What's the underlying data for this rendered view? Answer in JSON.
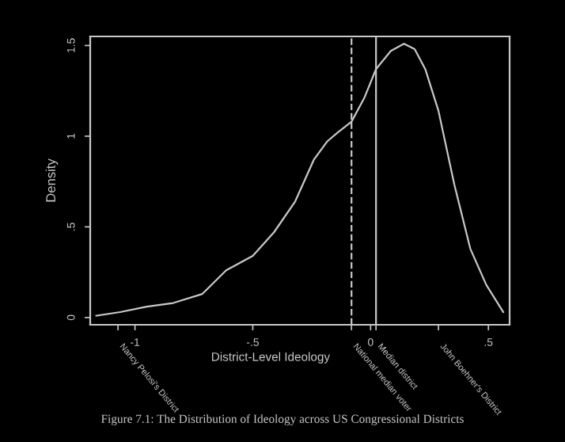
{
  "chart_data": {
    "type": "line",
    "xlabel": "District-Level Ideology",
    "ylabel": "Density",
    "annotations": [
      "Figure 7.1: The Distribution of Ideology across US Congressional Districts",
      "Nancy Pelosi's District",
      {
        "text": "National median voter",
        "x": -0.081,
        "y": -0.04
      },
      {
        "text": "Median district",
        "x": 0.023,
        "y": -0.04
      },
      "John Boehner's District"
    ],
    "x": [
      -1.164,
      -1.063,
      -0.95,
      -0.838,
      -0.714,
      -0.613,
      -0.5,
      -0.41,
      -0.32,
      -0.241,
      -0.185,
      -0.14,
      -0.081,
      -0.027,
      0.023,
      0.086,
      0.142,
      0.187,
      0.232,
      0.288,
      0.356,
      0.423,
      0.491,
      0.563
    ],
    "series": [
      {
        "color": "#c8c8c8",
        "values": [
          0.01,
          0.03,
          0.06,
          0.08,
          0.13,
          0.26,
          0.34,
          0.47,
          0.64,
          0.87,
          0.97,
          1.02,
          1.08,
          1.21,
          1.37,
          1.47,
          1.51,
          1.48,
          1.37,
          1.14,
          0.73,
          0.38,
          0.18,
          0.03
        ]
      }
    ],
    "xlim": [
      -1.19,
      0.59
    ],
    "ylim": [
      -0.04,
      1.55
    ],
    "xticks": [
      {
        "value": -1,
        "label": "-1"
      },
      {
        "value": -0.5,
        "label": "-.5"
      },
      0,
      {
        "value": 0.5,
        "label": ".5"
      },
      {
        "value": -1.072,
        "label": null
      },
      {
        "value": -0.081,
        "label": null
      },
      {
        "value": 0.023,
        "label": null
      },
      {
        "value": 0.288,
        "label": null
      }
    ],
    "yticks": [
      0,
      {
        "value": 0.5,
        "label": ".5"
      },
      1,
      {
        "value": 1.5,
        "label": "1.5"
      }
    ],
    "ref_lines": [
      {
        "axis": "x",
        "value": -0.081,
        "line_style": "dashed",
        "color": "#c8c8c8"
      },
      {
        "axis": "x",
        "value": 0.023,
        "line_style": "solid",
        "color": "#c8c8c8"
      }
    ],
    "grid": false,
    "legend": false,
    "marker": "none",
    "line_style": "solid"
  }
}
